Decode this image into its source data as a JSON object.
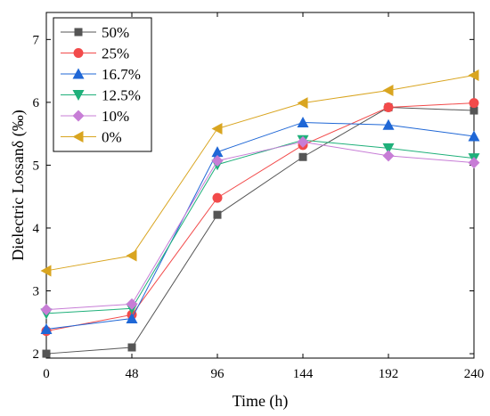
{
  "chart_data": {
    "type": "line",
    "xlabel": "Time (h)",
    "ylabel": "Dielectric Lossanδ (‰)",
    "x": [
      0,
      48,
      96,
      144,
      192,
      240
    ],
    "xlim": [
      0,
      240
    ],
    "ylim": [
      1.93,
      7.43
    ],
    "xticks": [
      "0",
      "48",
      "96",
      "144",
      "192",
      "240"
    ],
    "yticks": [
      "2",
      "3",
      "4",
      "5",
      "6",
      "7"
    ],
    "grid": false,
    "legend_position": "top-left",
    "series": [
      {
        "name": "50%",
        "color": "#555555",
        "marker": "square",
        "values": [
          2.0,
          2.1,
          4.21,
          5.13,
          5.92,
          5.87
        ]
      },
      {
        "name": "25%",
        "color": "#f24a4a",
        "marker": "circle",
        "values": [
          2.36,
          2.62,
          4.48,
          5.32,
          5.92,
          5.99
        ]
      },
      {
        "name": "16.7%",
        "color": "#1f67d6",
        "marker": "triangle-up",
        "values": [
          2.39,
          2.56,
          5.21,
          5.68,
          5.64,
          5.46
        ]
      },
      {
        "name": "12.5%",
        "color": "#1fb07a",
        "marker": "triangle-down",
        "values": [
          2.64,
          2.72,
          5.01,
          5.4,
          5.27,
          5.11
        ]
      },
      {
        "name": "10%",
        "color": "#c77dd6",
        "marker": "diamond",
        "values": [
          2.7,
          2.79,
          5.07,
          5.37,
          5.15,
          5.04
        ]
      },
      {
        "name": "0%",
        "color": "#d9a520",
        "marker": "triangle-left",
        "values": [
          3.32,
          3.56,
          5.58,
          5.99,
          6.19,
          6.43
        ]
      }
    ]
  }
}
